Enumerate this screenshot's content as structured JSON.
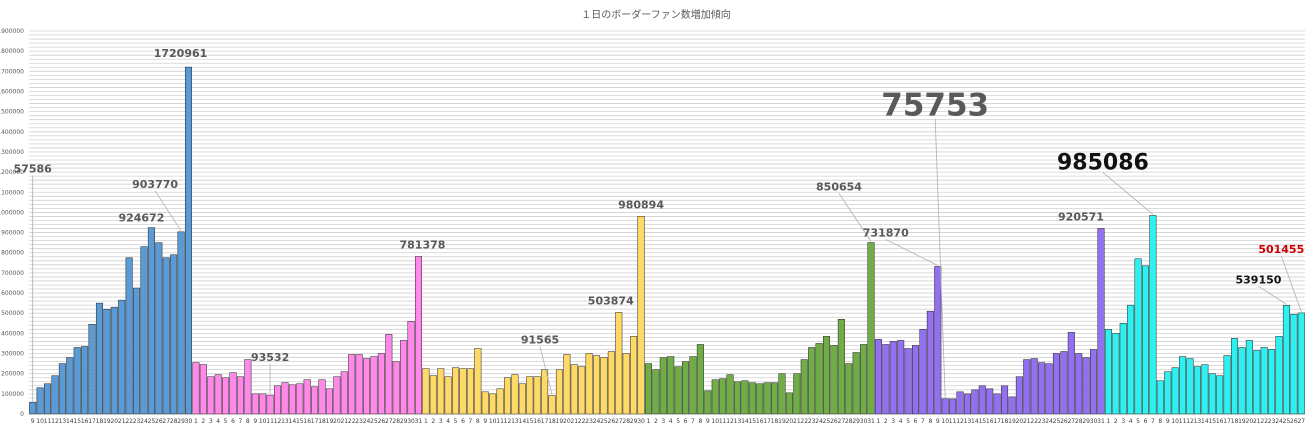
{
  "chart_data": {
    "type": "bar",
    "title": "１日のボーダーファン数増加傾向",
    "ylim": [
      0,
      1900000
    ],
    "yticks": [
      0,
      100000,
      200000,
      300000,
      400000,
      500000,
      600000,
      700000,
      800000,
      900000,
      1000000,
      1100000,
      1200000,
      1300000,
      1400000,
      1500000,
      1600000,
      1700000,
      1800000,
      1900000
    ],
    "ytick_labels": [
      "0",
      "100000",
      "200000",
      "300000",
      "400000",
      "500000",
      "600000",
      "700000",
      "800000",
      "900000",
      "1000000",
      "1100000",
      "1200000",
      "1300000",
      "1400000",
      "1500000",
      "1600000",
      "1700000",
      "1800000",
      "1900000"
    ],
    "series": [
      {
        "name": "blue",
        "color": "#5b9bd5",
        "days": [
          "9",
          "10",
          "11",
          "12",
          "13",
          "14",
          "15",
          "16",
          "17",
          "18",
          "19",
          "20",
          "21",
          "22",
          "23",
          "24",
          "25",
          "26",
          "27",
          "28",
          "29",
          "30"
        ],
        "values": [
          57586,
          130000,
          150000,
          190000,
          250000,
          280000,
          330000,
          335000,
          445000,
          550000,
          520000,
          530000,
          565000,
          775000,
          625000,
          830000,
          924672,
          850000,
          775000,
          790000,
          903770,
          1720961
        ]
      },
      {
        "name": "pink",
        "color": "#ff88e8",
        "days": [
          "1",
          "2",
          "3",
          "4",
          "5",
          "6",
          "7",
          "8",
          "9",
          "10",
          "11",
          "12",
          "13",
          "14",
          "15",
          "16",
          "17",
          "18",
          "19",
          "20",
          "21",
          "22",
          "23",
          "24",
          "25",
          "26",
          "27",
          "28",
          "29",
          "30",
          "31"
        ],
        "values": [
          255000,
          245000,
          185000,
          195000,
          180000,
          205000,
          185000,
          270000,
          100000,
          100000,
          93532,
          140000,
          155000,
          145000,
          150000,
          170000,
          135000,
          170000,
          125000,
          185000,
          210000,
          295000,
          295000,
          275000,
          285000,
          300000,
          395000,
          260000,
          365000,
          460000,
          781378
        ]
      },
      {
        "name": "yellow",
        "color": "#ffd966",
        "days": [
          "1",
          "2",
          "3",
          "4",
          "5",
          "6",
          "7",
          "8",
          "9",
          "10",
          "11",
          "12",
          "13",
          "14",
          "15",
          "16",
          "17",
          "18",
          "19",
          "20",
          "21",
          "22",
          "23",
          "24",
          "25",
          "26",
          "27",
          "28",
          "29",
          "30"
        ],
        "values": [
          225000,
          190000,
          225000,
          185000,
          230000,
          225000,
          225000,
          325000,
          110000,
          100000,
          125000,
          180000,
          195000,
          150000,
          185000,
          185000,
          220000,
          91565,
          220000,
          295000,
          245000,
          235000,
          300000,
          290000,
          280000,
          310000,
          503874,
          300000,
          385000,
          980894
        ]
      },
      {
        "name": "green",
        "color": "#70ad47",
        "days": [
          "1",
          "2",
          "3",
          "4",
          "5",
          "6",
          "7",
          "8",
          "9",
          "10",
          "11",
          "12",
          "13",
          "14",
          "15",
          "16",
          "17",
          "18",
          "19",
          "20",
          "21",
          "22",
          "23",
          "24",
          "25",
          "26",
          "27",
          "28",
          "29",
          "30",
          "31"
        ],
        "values": [
          250000,
          220000,
          280000,
          285000,
          235000,
          260000,
          285000,
          345000,
          115000,
          170000,
          175000,
          195000,
          160000,
          165000,
          155000,
          150000,
          155000,
          155000,
          200000,
          105000,
          200000,
          270000,
          330000,
          350000,
          385000,
          340000,
          470000,
          250000,
          305000,
          345000,
          850654
        ]
      },
      {
        "name": "purple",
        "color": "#9370f0",
        "days": [
          "1",
          "2",
          "3",
          "4",
          "5",
          "6",
          "7",
          "8",
          "9",
          "10",
          "11",
          "12",
          "13",
          "14",
          "15",
          "16",
          "17",
          "18",
          "19",
          "20",
          "21",
          "22",
          "23",
          "24",
          "25",
          "26",
          "27",
          "28",
          "29",
          "30",
          "31"
        ],
        "values": [
          370000,
          345000,
          360000,
          365000,
          325000,
          340000,
          420000,
          510000,
          731870,
          75753,
          75000,
          110000,
          100000,
          120000,
          140000,
          125000,
          100000,
          140000,
          85000,
          185000,
          270000,
          275000,
          255000,
          250000,
          300000,
          310000,
          405000,
          300000,
          280000,
          320000,
          920571
        ]
      },
      {
        "name": "cyan",
        "color": "#2ef0f0",
        "days": [
          "1",
          "2",
          "3",
          "4",
          "5",
          "6",
          "7",
          "8",
          "9",
          "10",
          "11",
          "12",
          "13",
          "14",
          "15",
          "16",
          "17",
          "18",
          "19",
          "20",
          "21",
          "22",
          "23",
          "24",
          "25",
          "26",
          "27"
        ],
        "values": [
          420000,
          400000,
          450000,
          540000,
          770000,
          735000,
          985086,
          165000,
          210000,
          230000,
          285000,
          275000,
          235000,
          245000,
          200000,
          190000,
          290000,
          375000,
          330000,
          365000,
          315000,
          330000,
          320000,
          385000,
          539150,
          495000,
          501455
        ]
      }
    ],
    "annotations": [
      {
        "text": "57586",
        "series": 0,
        "index": 0,
        "color": "#595959",
        "size": 11,
        "dx": 0,
        "dy": -230
      },
      {
        "text": "924672",
        "series": 0,
        "index": 16,
        "color": "#595959",
        "size": 11,
        "dx": -10,
        "dy": -6
      },
      {
        "text": "903770",
        "series": 0,
        "index": 20,
        "color": "#595959",
        "size": 11,
        "dx": -26,
        "dy": -44
      },
      {
        "text": "1720961",
        "series": 0,
        "index": 21,
        "color": "#595959",
        "size": 11,
        "dx": -8,
        "dy": -10
      },
      {
        "text": "93532",
        "series": 1,
        "index": 10,
        "color": "#595959",
        "size": 11,
        "dx": 0,
        "dy": -34
      },
      {
        "text": "781378",
        "series": 1,
        "index": 30,
        "color": "#595959",
        "size": 11,
        "dx": 4,
        "dy": -8
      },
      {
        "text": "91565",
        "series": 2,
        "index": 17,
        "color": "#595959",
        "size": 11,
        "dx": -12,
        "dy": -52
      },
      {
        "text": "503874",
        "series": 2,
        "index": 26,
        "color": "#595959",
        "size": 11,
        "dx": -8,
        "dy": -8
      },
      {
        "text": "980894",
        "series": 2,
        "index": 29,
        "color": "#595959",
        "size": 11,
        "dx": 0,
        "dy": -8
      },
      {
        "text": "850654",
        "series": 3,
        "index": 30,
        "color": "#595959",
        "size": 11,
        "dx": -32,
        "dy": -52
      },
      {
        "text": "731870",
        "series": 4,
        "index": 8,
        "color": "#595959",
        "size": 11,
        "dx": -52,
        "dy": -30
      },
      {
        "text": "75753",
        "series": 4,
        "index": 9,
        "color": "#595959",
        "size": 31,
        "dx": -10,
        "dy": -283
      },
      {
        "text": "920571",
        "series": 4,
        "index": 30,
        "color": "#595959",
        "size": 11,
        "dx": -20,
        "dy": -8
      },
      {
        "text": "985086",
        "series": 5,
        "index": 6,
        "color": "#111111",
        "size": 22,
        "dx": -50,
        "dy": -46
      },
      {
        "text": "539150",
        "series": 5,
        "index": 24,
        "color": "#111111",
        "size": 11,
        "dx": -28,
        "dy": -22
      },
      {
        "text": "501455",
        "series": 5,
        "index": 26,
        "color": "#cc0000",
        "size": 11,
        "dx": -20,
        "dy": -60
      }
    ]
  }
}
